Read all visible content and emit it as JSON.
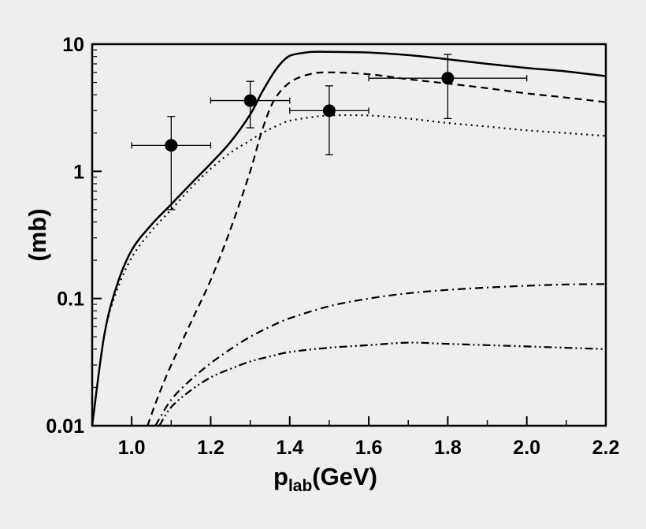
{
  "chart_data": {
    "type": "line",
    "title": "",
    "xlabel": {
      "main": "p",
      "subscript": "lab",
      "suffix": "(GeV)"
    },
    "ylabel": "(mb)",
    "xlim": [
      0.9,
      2.2
    ],
    "ylim": [
      0.01,
      10
    ],
    "yscale": "log",
    "grid": false,
    "legend": "none",
    "x_ticks": [
      {
        "value": 1.0,
        "label": "1.0"
      },
      {
        "value": 1.2,
        "label": "1.2"
      },
      {
        "value": 1.4,
        "label": "1.4"
      },
      {
        "value": 1.6,
        "label": "1.6"
      },
      {
        "value": 1.8,
        "label": "1.8"
      },
      {
        "value": 2.0,
        "label": "2.0"
      },
      {
        "value": 2.2,
        "label": "2.2"
      }
    ],
    "y_ticks": [
      {
        "value": 0.01,
        "label": "0.01"
      },
      {
        "value": 0.1,
        "label": "0.1"
      },
      {
        "value": 1,
        "label": "1"
      },
      {
        "value": 10,
        "label": "10"
      }
    ],
    "series": [
      {
        "style": "solid",
        "color": "#000000",
        "x": [
          0.9,
          0.93,
          0.96,
          1.0,
          1.05,
          1.1,
          1.15,
          1.2,
          1.25,
          1.3,
          1.33,
          1.36,
          1.38,
          1.4,
          1.43,
          1.46,
          1.5,
          1.6,
          1.7,
          1.8,
          1.9,
          2.0,
          2.1,
          2.2
        ],
        "y": [
          0.01,
          0.05,
          0.12,
          0.24,
          0.38,
          0.55,
          0.8,
          1.15,
          1.7,
          2.8,
          4.2,
          6.0,
          7.2,
          8.1,
          8.5,
          8.7,
          8.7,
          8.6,
          8.2,
          7.6,
          7.0,
          6.5,
          6.1,
          5.6
        ]
      },
      {
        "style": "dashed",
        "color": "#000000",
        "x": [
          1.04,
          1.07,
          1.1,
          1.15,
          1.2,
          1.25,
          1.3,
          1.33,
          1.36,
          1.4,
          1.45,
          1.5,
          1.6,
          1.7,
          1.8,
          1.9,
          2.0,
          2.1,
          2.2
        ],
        "y": [
          0.01,
          0.018,
          0.03,
          0.065,
          0.14,
          0.35,
          1.0,
          2.1,
          3.6,
          5.0,
          5.8,
          6.0,
          5.8,
          5.3,
          4.9,
          4.5,
          4.1,
          3.8,
          3.5
        ]
      },
      {
        "style": "dotted",
        "color": "#000000",
        "x": [
          0.9,
          0.93,
          0.96,
          1.0,
          1.05,
          1.1,
          1.15,
          1.2,
          1.25,
          1.3,
          1.33,
          1.37,
          1.4,
          1.45,
          1.5,
          1.6,
          1.7,
          1.8,
          1.9,
          2.0,
          2.1,
          2.2
        ],
        "y": [
          0.01,
          0.05,
          0.11,
          0.21,
          0.34,
          0.5,
          0.74,
          1.05,
          1.4,
          1.75,
          2.0,
          2.3,
          2.5,
          2.65,
          2.75,
          2.75,
          2.6,
          2.4,
          2.25,
          2.1,
          2.0,
          1.9
        ]
      },
      {
        "style": "dash-dot",
        "color": "#000000",
        "x": [
          1.06,
          1.1,
          1.15,
          1.2,
          1.25,
          1.3,
          1.35,
          1.4,
          1.5,
          1.6,
          1.7,
          1.8,
          1.9,
          2.0,
          2.1,
          2.2
        ],
        "y": [
          0.01,
          0.016,
          0.023,
          0.031,
          0.04,
          0.05,
          0.06,
          0.07,
          0.087,
          0.1,
          0.11,
          0.117,
          0.122,
          0.126,
          0.129,
          0.13
        ]
      },
      {
        "style": "dash-dot-dot",
        "color": "#000000",
        "x": [
          1.07,
          1.1,
          1.15,
          1.2,
          1.25,
          1.3,
          1.35,
          1.4,
          1.5,
          1.6,
          1.7,
          1.8,
          1.9,
          2.0,
          2.1,
          2.2
        ],
        "y": [
          0.01,
          0.014,
          0.019,
          0.024,
          0.028,
          0.032,
          0.035,
          0.038,
          0.041,
          0.043,
          0.045,
          0.044,
          0.043,
          0.042,
          0.041,
          0.04
        ]
      }
    ],
    "data_points": [
      {
        "x": 1.1,
        "y": 1.6,
        "xerr": [
          1.0,
          1.2
        ],
        "yerr": [
          0.5,
          2.7
        ]
      },
      {
        "x": 1.3,
        "y": 3.6,
        "xerr": [
          1.2,
          1.4
        ],
        "yerr": [
          2.2,
          5.1
        ]
      },
      {
        "x": 1.5,
        "y": 3.0,
        "xerr": [
          1.4,
          1.6
        ],
        "yerr": [
          1.35,
          4.7
        ]
      },
      {
        "x": 1.8,
        "y": 5.4,
        "xerr": [
          1.6,
          2.0
        ],
        "yerr": [
          2.6,
          8.3
        ]
      }
    ]
  }
}
